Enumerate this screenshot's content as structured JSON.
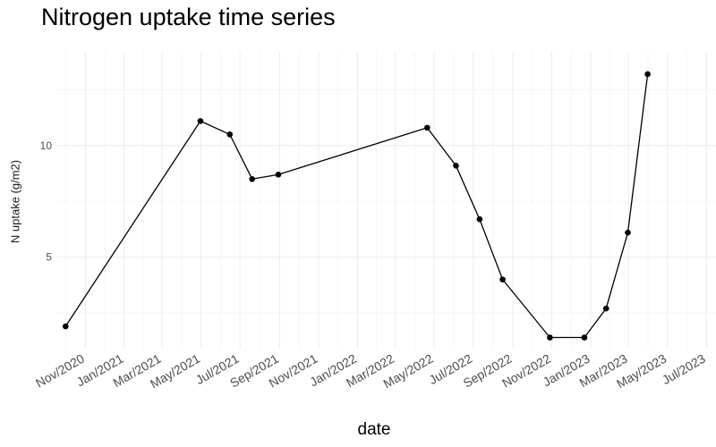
{
  "chart_data": {
    "type": "line",
    "title": "Nitrogen uptake time series",
    "xlabel": "date",
    "ylabel": "N uptake (g/m2)",
    "x_ticks": [
      "Nov/2020",
      "Jan/2021",
      "Mar/2021",
      "May/2021",
      "Jul/2021",
      "Sep/2021",
      "Nov/2021",
      "Jan/2022",
      "Mar/2022",
      "May/2022",
      "Jul/2022",
      "Sep/2022",
      "Nov/2022",
      "Jan/2023",
      "Mar/2023",
      "May/2023",
      "Jul/2023"
    ],
    "y_ticks": [
      5,
      10
    ],
    "ylim": [
      0.9,
      14.2
    ],
    "xlim": [
      "2020-09-18",
      "2023-07-16"
    ],
    "grid": true,
    "series": [
      {
        "x": [
          "2020-10-01",
          "2021-04-30",
          "2021-06-15",
          "2021-07-20",
          "2021-08-30",
          "2022-04-20",
          "2022-06-04",
          "2022-07-11",
          "2022-08-16",
          "2022-10-29",
          "2022-12-22",
          "2023-01-25",
          "2023-02-28",
          "2023-03-31"
        ],
        "y": [
          1.9,
          11.1,
          10.5,
          8.5,
          8.7,
          10.8,
          9.1,
          6.7,
          4.0,
          1.4,
          1.4,
          2.7,
          6.1,
          13.2
        ]
      }
    ]
  }
}
